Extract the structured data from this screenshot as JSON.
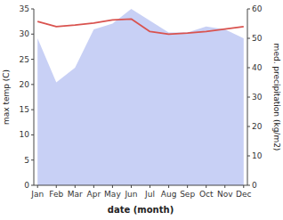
{
  "chart_data": {
    "type": "line",
    "categories": [
      "Jan",
      "Feb",
      "Mar",
      "Apr",
      "May",
      "Jun",
      "Jul",
      "Aug",
      "Sep",
      "Oct",
      "Nov",
      "Dec"
    ],
    "xlabel": "date (month)",
    "ylabel": "max temp (C)",
    "y2label": "med. precipitation (kg/m2)",
    "series": [
      {
        "type": "area",
        "axis": "y2",
        "color": "#c8d0f5",
        "values": [
          50,
          35,
          40,
          53,
          55,
          60,
          56,
          52,
          52,
          54,
          53,
          50
        ]
      },
      {
        "type": "line",
        "color": "#d9534f",
        "values": [
          32.5,
          31.5,
          31.8,
          32.2,
          32.8,
          33.0,
          30.5,
          30.0,
          30.2,
          30.5,
          31.0,
          31.5
        ]
      }
    ],
    "ylim": [
      0,
      35
    ],
    "yticks": [
      0,
      5,
      10,
      15,
      20,
      25,
      30,
      35
    ],
    "y2lim": [
      0,
      60
    ],
    "y2ticks": [
      0,
      10,
      20,
      30,
      40,
      50,
      60
    ],
    "grid": false
  }
}
